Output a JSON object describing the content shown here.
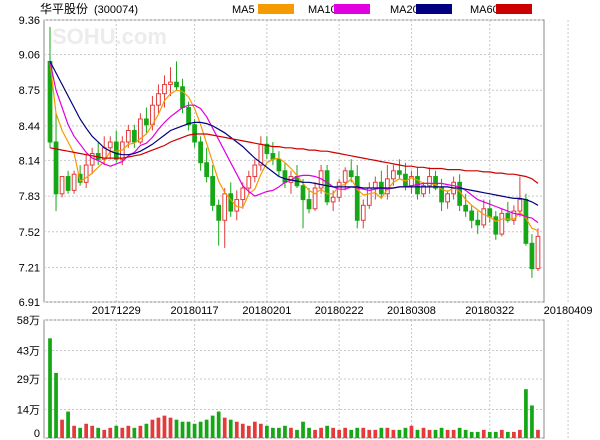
{
  "stock": {
    "name": "华平股份",
    "code": "(300074)"
  },
  "watermark": "SOHU.com",
  "legend": [
    {
      "label": "MA5",
      "color": "#f59a00"
    },
    {
      "label": "MA10",
      "color": "#e000e0"
    },
    {
      "label": "MA20",
      "color": "#000080"
    },
    {
      "label": "MA60",
      "color": "#cc0000"
    }
  ],
  "colors": {
    "up": "#e33b3b",
    "down": "#16a716",
    "grid": "#c8c8c8",
    "axis": "#555555"
  },
  "chart_data": [
    {
      "type": "candlestick",
      "title": "",
      "ylim": [
        6.91,
        9.36
      ],
      "yticks": [
        {
          "v": 9.36,
          "label": "9.36"
        },
        {
          "v": 9.06,
          "label": "9.06"
        },
        {
          "v": 8.75,
          "label": "8.75"
        },
        {
          "v": 8.44,
          "label": "8.44"
        },
        {
          "v": 8.14,
          "label": "8.14"
        },
        {
          "v": 7.83,
          "label": "7.83"
        },
        {
          "v": 7.52,
          "label": "7.52"
        },
        {
          "v": 7.21,
          "label": "7.21"
        },
        {
          "v": 6.91,
          "label": "6.91"
        }
      ],
      "xticks": [
        {
          "i": 11,
          "label": "20171229"
        },
        {
          "i": 24,
          "label": "20180117"
        },
        {
          "i": 36,
          "label": "20180201"
        },
        {
          "i": 48,
          "label": "20180222"
        },
        {
          "i": 60,
          "label": "20180308"
        },
        {
          "i": 73,
          "label": "20180322"
        },
        {
          "i": 86,
          "label": "20180409"
        }
      ],
      "ohlc": [
        [
          9.0,
          9.3,
          8.25,
          8.3
        ],
        [
          8.3,
          8.55,
          7.7,
          7.85
        ],
        [
          7.85,
          8.0,
          7.82,
          8.0
        ],
        [
          8.0,
          8.05,
          7.85,
          7.88
        ],
        [
          7.88,
          8.05,
          7.85,
          8.02
        ],
        [
          8.02,
          8.1,
          7.92,
          7.95
        ],
        [
          7.95,
          8.2,
          7.9,
          8.1
        ],
        [
          8.1,
          8.25,
          8.02,
          8.2
        ],
        [
          8.2,
          8.3,
          8.1,
          8.15
        ],
        [
          8.15,
          8.35,
          8.1,
          8.25
        ],
        [
          8.25,
          8.35,
          8.15,
          8.3
        ],
        [
          8.3,
          8.4,
          8.12,
          8.15
        ],
        [
          8.15,
          8.35,
          8.1,
          8.3
        ],
        [
          8.3,
          8.45,
          8.25,
          8.4
        ],
        [
          8.4,
          8.45,
          8.25,
          8.3
        ],
        [
          8.3,
          8.55,
          8.28,
          8.5
        ],
        [
          8.5,
          8.6,
          8.38,
          8.45
        ],
        [
          8.45,
          8.7,
          8.4,
          8.62
        ],
        [
          8.62,
          8.8,
          8.55,
          8.72
        ],
        [
          8.72,
          8.88,
          8.6,
          8.8
        ],
        [
          8.8,
          8.95,
          8.7,
          8.82
        ],
        [
          8.82,
          9.0,
          8.75,
          8.78
        ],
        [
          8.78,
          8.85,
          8.55,
          8.6
        ],
        [
          8.6,
          8.65,
          8.4,
          8.45
        ],
        [
          8.45,
          8.5,
          8.25,
          8.3
        ],
        [
          8.3,
          8.35,
          8.05,
          8.12
        ],
        [
          8.12,
          8.25,
          7.95,
          8.0
        ],
        [
          8.0,
          8.1,
          7.7,
          7.75
        ],
        [
          7.75,
          7.8,
          7.4,
          7.62
        ],
        [
          7.62,
          7.9,
          7.38,
          7.85
        ],
        [
          7.85,
          7.95,
          7.65,
          7.7
        ],
        [
          7.7,
          7.88,
          7.62,
          7.8
        ],
        [
          7.8,
          7.95,
          7.72,
          7.9
        ],
        [
          7.9,
          8.05,
          7.85,
          8.0
        ],
        [
          8.0,
          8.15,
          7.95,
          8.1
        ],
        [
          8.1,
          8.35,
          8.05,
          8.28
        ],
        [
          8.28,
          8.35,
          8.15,
          8.2
        ],
        [
          8.2,
          8.3,
          8.1,
          8.15
        ],
        [
          8.15,
          8.22,
          8.0,
          8.05
        ],
        [
          8.05,
          8.12,
          7.9,
          7.95
        ],
        [
          7.95,
          8.05,
          7.85,
          8.0
        ],
        [
          8.0,
          8.1,
          7.9,
          7.92
        ],
        [
          7.92,
          7.98,
          7.55,
          7.8
        ],
        [
          7.8,
          7.9,
          7.68,
          7.72
        ],
        [
          7.72,
          7.95,
          7.7,
          7.9
        ],
        [
          7.9,
          8.1,
          7.85,
          8.05
        ],
        [
          8.05,
          8.1,
          7.75,
          7.78
        ],
        [
          7.78,
          7.88,
          7.7,
          7.82
        ],
        [
          7.82,
          7.98,
          7.78,
          7.95
        ],
        [
          7.95,
          8.08,
          7.88,
          8.05
        ],
        [
          8.05,
          8.15,
          7.95,
          8.0
        ],
        [
          8.0,
          8.1,
          7.55,
          7.62
        ],
        [
          7.62,
          7.8,
          7.55,
          7.75
        ],
        [
          7.75,
          7.95,
          7.72,
          7.9
        ],
        [
          7.9,
          8.0,
          7.8,
          7.95
        ],
        [
          7.95,
          8.05,
          7.82,
          7.85
        ],
        [
          7.85,
          8.1,
          7.8,
          7.98
        ],
        [
          7.98,
          8.1,
          7.92,
          8.05
        ],
        [
          8.05,
          8.15,
          7.98,
          8.02
        ],
        [
          8.02,
          8.12,
          7.88,
          7.92
        ],
        [
          7.92,
          8.05,
          7.85,
          8.0
        ],
        [
          8.0,
          8.08,
          7.8,
          7.85
        ],
        [
          7.85,
          7.95,
          7.82,
          7.92
        ],
        [
          7.92,
          8.08,
          7.85,
          8.0
        ],
        [
          8.0,
          8.05,
          7.88,
          7.9
        ],
        [
          7.9,
          7.98,
          7.7,
          7.78
        ],
        [
          7.78,
          7.88,
          7.72,
          7.85
        ],
        [
          7.85,
          8.0,
          7.8,
          7.95
        ],
        [
          7.95,
          8.02,
          7.7,
          7.75
        ],
        [
          7.75,
          7.85,
          7.65,
          7.7
        ],
        [
          7.7,
          7.75,
          7.55,
          7.62
        ],
        [
          7.62,
          7.7,
          7.5,
          7.58
        ],
        [
          7.58,
          7.8,
          7.55,
          7.72
        ],
        [
          7.72,
          7.8,
          7.6,
          7.65
        ],
        [
          7.65,
          7.7,
          7.45,
          7.5
        ],
        [
          7.5,
          7.72,
          7.48,
          7.68
        ],
        [
          7.68,
          7.78,
          7.6,
          7.62
        ],
        [
          7.62,
          7.75,
          7.58,
          7.7
        ],
        [
          7.7,
          8.0,
          7.65,
          7.8
        ],
        [
          7.8,
          7.85,
          7.4,
          7.42
        ],
        [
          7.42,
          7.5,
          7.12,
          7.2
        ],
        [
          7.2,
          7.55,
          7.18,
          7.48
        ]
      ],
      "ma5": [
        9.0,
        8.55,
        8.4,
        8.3,
        8.2,
        7.96,
        7.99,
        8.03,
        8.08,
        8.13,
        8.22,
        8.22,
        8.23,
        8.28,
        8.29,
        8.33,
        8.37,
        8.45,
        8.54,
        8.66,
        8.72,
        8.75,
        8.74,
        8.69,
        8.59,
        8.45,
        8.29,
        8.12,
        7.96,
        7.86,
        7.8,
        7.74,
        7.73,
        7.85,
        7.89,
        8.02,
        8.12,
        8.15,
        8.16,
        8.12,
        8.07,
        8.01,
        7.94,
        7.88,
        7.85,
        7.89,
        7.85,
        7.85,
        7.92,
        7.93,
        7.98,
        7.89,
        7.84,
        7.85,
        7.86,
        7.81,
        7.89,
        7.95,
        7.98,
        7.96,
        7.99,
        7.97,
        7.94,
        7.94,
        7.93,
        7.89,
        7.87,
        7.9,
        7.87,
        7.8,
        7.75,
        7.71,
        7.67,
        7.65,
        7.61,
        7.63,
        7.63,
        7.63,
        7.69,
        7.64,
        7.55,
        7.53
      ],
      "ma10": [
        9.0,
        8.75,
        8.6,
        8.45,
        8.35,
        8.28,
        8.21,
        8.16,
        8.14,
        8.11,
        8.09,
        8.11,
        8.13,
        8.18,
        8.21,
        8.27,
        8.29,
        8.34,
        8.41,
        8.47,
        8.52,
        8.56,
        8.6,
        8.62,
        8.62,
        8.59,
        8.52,
        8.42,
        8.32,
        8.22,
        8.12,
        8.02,
        7.92,
        7.87,
        7.83,
        7.85,
        7.87,
        7.88,
        7.91,
        7.95,
        7.97,
        8.0,
        8.01,
        8.01,
        8.0,
        7.98,
        7.95,
        7.91,
        7.89,
        7.89,
        7.91,
        7.9,
        7.89,
        7.88,
        7.89,
        7.9,
        7.89,
        7.9,
        7.91,
        7.91,
        7.92,
        7.93,
        7.94,
        7.94,
        7.94,
        7.94,
        7.93,
        7.92,
        7.91,
        7.88,
        7.84,
        7.8,
        7.78,
        7.76,
        7.74,
        7.72,
        7.7,
        7.68,
        7.67,
        7.65,
        7.64,
        7.6
      ],
      "ma20": [
        9.0,
        8.9,
        8.8,
        8.7,
        8.6,
        8.5,
        8.42,
        8.35,
        8.3,
        8.25,
        8.22,
        8.2,
        8.19,
        8.19,
        8.2,
        8.22,
        8.25,
        8.28,
        8.32,
        8.36,
        8.4,
        8.42,
        8.44,
        8.46,
        8.47,
        8.47,
        8.46,
        8.44,
        8.41,
        8.38,
        8.34,
        8.3,
        8.26,
        8.21,
        8.16,
        8.12,
        8.08,
        8.04,
        8.0,
        7.98,
        7.97,
        7.96,
        7.95,
        7.95,
        7.94,
        7.93,
        7.92,
        7.91,
        7.91,
        7.91,
        7.91,
        7.91,
        7.9,
        7.9,
        7.9,
        7.9,
        7.9,
        7.9,
        7.91,
        7.91,
        7.91,
        7.91,
        7.91,
        7.91,
        7.91,
        7.91,
        7.91,
        7.9,
        7.9,
        7.89,
        7.88,
        7.87,
        7.86,
        7.85,
        7.84,
        7.83,
        7.82,
        7.81,
        7.81,
        7.8,
        7.78,
        7.75
      ],
      "ma60": [
        8.25,
        8.24,
        8.23,
        8.22,
        8.21,
        8.2,
        8.19,
        8.18,
        8.17,
        8.16,
        8.16,
        8.16,
        8.16,
        8.17,
        8.18,
        8.19,
        8.21,
        8.23,
        8.25,
        8.27,
        8.3,
        8.32,
        8.34,
        8.36,
        8.37,
        8.37,
        8.37,
        8.36,
        8.35,
        8.34,
        8.33,
        8.32,
        8.31,
        8.3,
        8.29,
        8.28,
        8.27,
        8.26,
        8.26,
        8.25,
        8.25,
        8.24,
        8.24,
        8.23,
        8.23,
        8.22,
        8.22,
        8.21,
        8.2,
        8.19,
        8.18,
        8.17,
        8.16,
        8.15,
        8.14,
        8.13,
        8.12,
        8.11,
        8.1,
        8.09,
        8.09,
        8.08,
        8.08,
        8.07,
        8.07,
        8.07,
        8.06,
        8.06,
        8.06,
        8.05,
        8.05,
        8.05,
        8.04,
        8.04,
        8.03,
        8.03,
        8.02,
        8.02,
        8.01,
        8.0,
        7.98,
        7.94
      ]
    },
    {
      "type": "bar",
      "title": "",
      "ylim": [
        0,
        58
      ],
      "yticks": [
        {
          "v": 58,
          "label": "58万"
        },
        {
          "v": 43,
          "label": "43万"
        },
        {
          "v": 29,
          "label": "29万"
        },
        {
          "v": 14,
          "label": "14万"
        },
        {
          "v": 0,
          "label": "0"
        }
      ],
      "volume": [
        49,
        32,
        9,
        13,
        6,
        5,
        7,
        6,
        5,
        4,
        5,
        6,
        5,
        6,
        5,
        6,
        7,
        9,
        10,
        11,
        10,
        9,
        8,
        8,
        7,
        8,
        9,
        11,
        13,
        10,
        9,
        8,
        7,
        6,
        8,
        7,
        6,
        5,
        5,
        6,
        5,
        4,
        8,
        5,
        4,
        5,
        6,
        5,
        4,
        5,
        4,
        5,
        5,
        4,
        4,
        5,
        5,
        4,
        4,
        5,
        6,
        4,
        5,
        4,
        4,
        5,
        4,
        4,
        5,
        4,
        3,
        3,
        4,
        3,
        3,
        4,
        3,
        3,
        4,
        24,
        16,
        4
      ]
    }
  ]
}
